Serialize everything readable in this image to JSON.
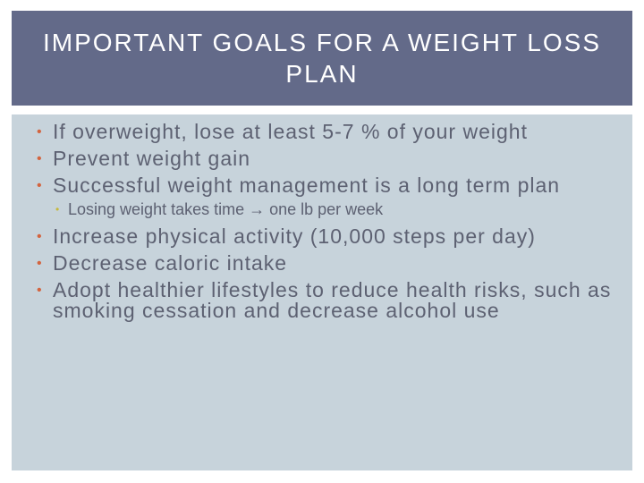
{
  "slide": {
    "title": "IMPORTANT GOALS FOR A WEIGHT LOSS PLAN",
    "bullet_glyph": "•",
    "bullets": [
      "If overweight, lose at least 5-7 % of your weight",
      "Prevent weight gain",
      "Successful weight management is a long term plan",
      "Increase physical activity (10,000 steps per day)",
      "Decrease caloric intake",
      "Adopt healthier lifestyles to reduce health risks, such as smoking cessation and decrease alcohol use"
    ],
    "sub_bullets": [
      "Losing weight takes time → one lb per week"
    ]
  },
  "colors": {
    "title_bar": "#636a89",
    "content_background": "#c7d3db",
    "bullet_accent": "#d3643f",
    "sub_bullet_accent": "#c7b83a",
    "body_text": "#5d6172"
  }
}
